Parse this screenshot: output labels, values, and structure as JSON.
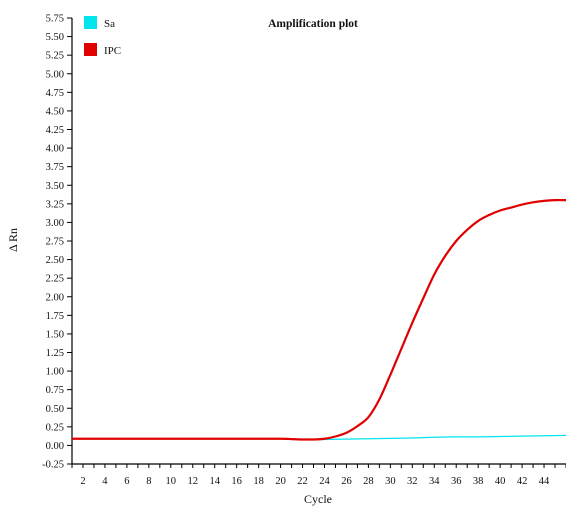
{
  "chart_data": {
    "type": "line",
    "title": "Amplification plot",
    "xlabel": "Cycle",
    "ylabel": "Δ Rn",
    "xlim": [
      1,
      46
    ],
    "ylim": [
      -0.25,
      5.75
    ],
    "xticks": [
      2,
      4,
      6,
      8,
      10,
      12,
      14,
      16,
      18,
      20,
      22,
      24,
      26,
      28,
      30,
      32,
      34,
      36,
      38,
      40,
      42,
      44
    ],
    "yticks": [
      "-0.25",
      "0.00",
      "0.25",
      "0.50",
      "0.75",
      "1.00",
      "1.25",
      "1.50",
      "1.75",
      "2.00",
      "2.25",
      "2.50",
      "2.75",
      "3.00",
      "3.25",
      "3.50",
      "3.75",
      "4.00",
      "4.25",
      "4.50",
      "4.75",
      "5.00",
      "5.25",
      "5.50",
      "5.75"
    ],
    "grid": false,
    "legend_position": "top-left",
    "series": [
      {
        "name": "Sa",
        "color": "#00e5ee",
        "x": [
          1,
          5,
          10,
          15,
          20,
          22,
          23,
          24,
          26,
          28,
          30,
          32,
          34,
          36,
          38,
          40,
          42,
          44,
          46
        ],
        "y": [
          0.09,
          0.09,
          0.09,
          0.09,
          0.09,
          0.085,
          0.08,
          0.08,
          0.085,
          0.09,
          0.095,
          0.1,
          0.11,
          0.115,
          0.115,
          0.12,
          0.125,
          0.13,
          0.135
        ]
      },
      {
        "name": "IPC",
        "color": "#e00000",
        "x": [
          1,
          5,
          10,
          15,
          20,
          21,
          22,
          23,
          24,
          25,
          26,
          27,
          28,
          29,
          30,
          31,
          32,
          33,
          34,
          35,
          36,
          37,
          38,
          39,
          40,
          41,
          42,
          43,
          44,
          45,
          46
        ],
        "y": [
          0.09,
          0.09,
          0.09,
          0.09,
          0.09,
          0.085,
          0.08,
          0.08,
          0.09,
          0.12,
          0.17,
          0.26,
          0.38,
          0.62,
          0.95,
          1.3,
          1.65,
          1.98,
          2.3,
          2.55,
          2.75,
          2.9,
          3.02,
          3.1,
          3.16,
          3.2,
          3.24,
          3.27,
          3.29,
          3.3,
          3.3
        ]
      }
    ]
  }
}
